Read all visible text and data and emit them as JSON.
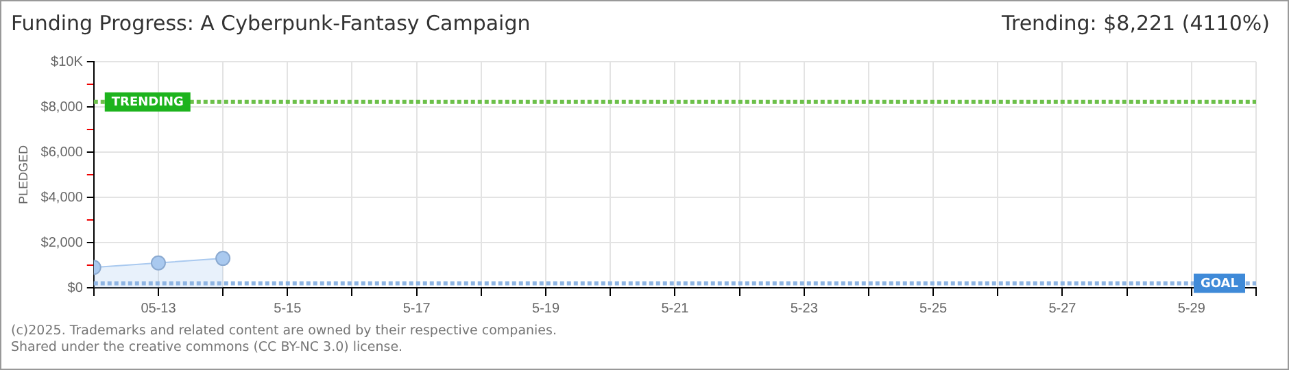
{
  "chart_data": {
    "type": "area",
    "title": "Funding Progress: A Cyberpunk-Fantasy Campaign",
    "subtitle": "Trending: $8,221 (4110%)",
    "ylabel": "PLEDGED",
    "x": [
      "--05-12",
      "--05-13",
      "--05-14"
    ],
    "series": [
      {
        "color": "#a9c9ef",
        "values": [
          900,
          1100,
          1300
        ]
      }
    ],
    "marker": "circle",
    "grid": true,
    "legend": false,
    "xlim": [
      "--05-12",
      "--05-30"
    ],
    "xticks": [
      {
        "value": "--05-12",
        "label": null
      },
      {
        "value": "--05-13",
        "label": "05-13"
      },
      {
        "value": "--05-14",
        "label": null
      },
      {
        "value": "--05-15",
        "label": "5-15"
      },
      {
        "value": "--05-16",
        "label": null
      },
      {
        "value": "--05-17",
        "label": "5-17"
      },
      {
        "value": "--05-18",
        "label": null
      },
      {
        "value": "--05-19",
        "label": "5-19"
      },
      {
        "value": "--05-20",
        "label": null
      },
      {
        "value": "--05-21",
        "label": "5-21"
      },
      {
        "value": "--05-22",
        "label": null
      },
      {
        "value": "--05-23",
        "label": "5-23"
      },
      {
        "value": "--05-24",
        "label": null
      },
      {
        "value": "--05-25",
        "label": "5-25"
      },
      {
        "value": "--05-26",
        "label": null
      },
      {
        "value": "--05-27",
        "label": "5-27"
      },
      {
        "value": "--05-28",
        "label": null
      },
      {
        "value": "--05-29",
        "label": "5-29"
      },
      {
        "value": "--05-30",
        "label": null
      }
    ],
    "ylim": [
      0,
      10000
    ],
    "yticks": [
      {
        "value": 0,
        "label": "$0"
      },
      {
        "value": 1000,
        "label": null
      },
      {
        "value": 2000,
        "label": "$2,000"
      },
      {
        "value": 3000,
        "label": null
      },
      {
        "value": 4000,
        "label": "$4,000"
      },
      {
        "value": 5000,
        "label": null
      },
      {
        "value": 6000,
        "label": "$6,000"
      },
      {
        "value": 7000,
        "label": null
      },
      {
        "value": 8000,
        "label": "$8,000"
      },
      {
        "value": 9000,
        "label": null
      },
      {
        "value": 10000,
        "label": "$10K"
      }
    ],
    "ref_lines": [
      {
        "axis": "y",
        "value": 8221,
        "label": "TRENDING",
        "color": "#6cc04a",
        "line_style": "dotted"
      },
      {
        "axis": "y",
        "value": 200,
        "label": "GOAL",
        "color": "#8fb5e3",
        "line_style": "dotted"
      }
    ],
    "annotations": [
      "(c)2025. Trademarks and related content are owned by their respective companies.",
      "Shared under the creative commons (CC BY-NC 3.0) license."
    ]
  }
}
